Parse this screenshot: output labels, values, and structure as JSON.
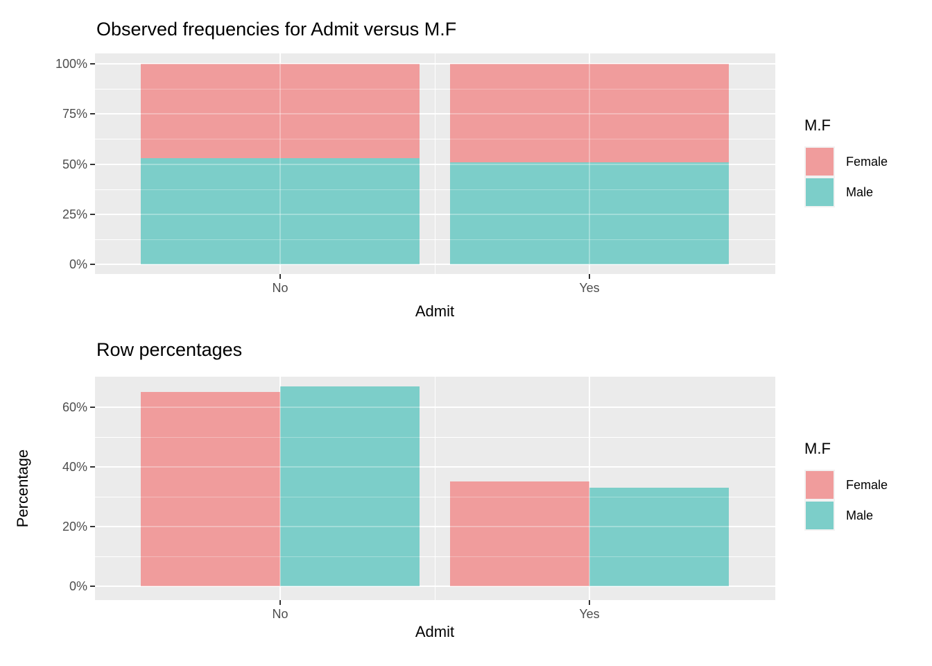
{
  "page": {
    "background": "#FFFFFF"
  },
  "style": {
    "panel_bg": "#EBEBEB",
    "grid_color": "#FFFFFF",
    "tick_text_color": "#4D4D4D",
    "title_color": "#000000",
    "female_color": "#F09C9C",
    "male_color": "#7CCEC9"
  },
  "chart_data": [
    {
      "type": "bar",
      "variant": "stacked",
      "title": "Observed frequencies for Admit versus M.F",
      "xlabel": "Admit",
      "ylabel": "",
      "categories": [
        "No",
        "Yes"
      ],
      "series": [
        {
          "name": "Female",
          "color": "#F09C9C",
          "values": [
            47,
            49
          ]
        },
        {
          "name": "Male",
          "color": "#7CCEC9",
          "values": [
            53,
            51
          ]
        }
      ],
      "stack_total": 100,
      "y_ticks": [
        {
          "label": "0%",
          "value": 0
        },
        {
          "label": "25%",
          "value": 25
        },
        {
          "label": "50%",
          "value": 50
        },
        {
          "label": "75%",
          "value": 75
        },
        {
          "label": "100%",
          "value": 100
        }
      ],
      "ylim": [
        0,
        100
      ],
      "grid": true,
      "legend": {
        "title": "M.F",
        "position": "right",
        "labels": [
          "Female",
          "Male"
        ]
      }
    },
    {
      "type": "bar",
      "variant": "grouped",
      "title": "Row percentages",
      "xlabel": "Admit",
      "ylabel": "Percentage",
      "categories": [
        "No",
        "Yes"
      ],
      "series": [
        {
          "name": "Female",
          "color": "#F09C9C",
          "values": [
            65,
            35
          ]
        },
        {
          "name": "Male",
          "color": "#7CCEC9",
          "values": [
            67,
            33
          ]
        }
      ],
      "y_ticks": [
        {
          "label": "0%",
          "value": 0
        },
        {
          "label": "20%",
          "value": 20
        },
        {
          "label": "40%",
          "value": 40
        },
        {
          "label": "60%",
          "value": 60
        }
      ],
      "ylim": [
        0,
        70
      ],
      "grid": true,
      "legend": {
        "title": "M.F",
        "position": "right",
        "labels": [
          "Female",
          "Male"
        ]
      }
    }
  ]
}
